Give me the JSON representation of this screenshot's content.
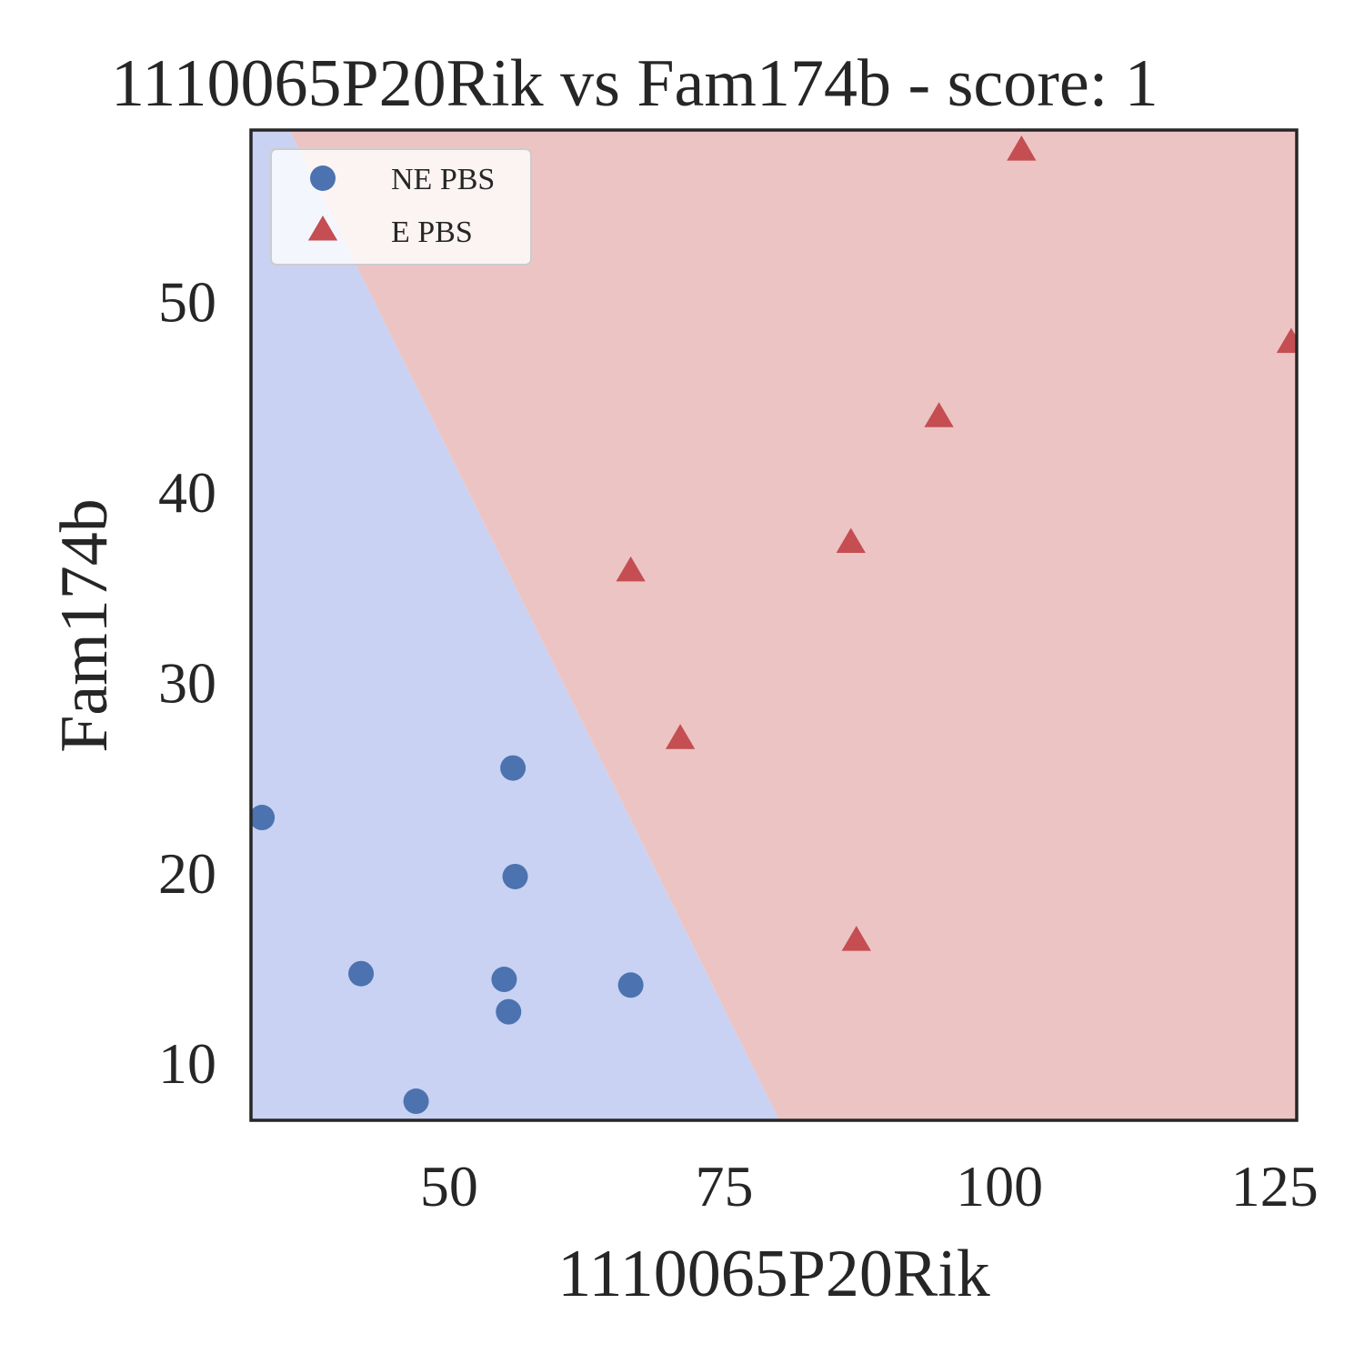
{
  "chart_data": {
    "type": "scatter",
    "title": "1110065P20Rik vs Fam174b - score: 1",
    "xlabel": "1110065P20Rik",
    "ylabel": "Fam174b",
    "xlim": [
      32,
      127
    ],
    "ylim": [
      7,
      59
    ],
    "xticks": [
      50,
      75,
      100,
      125
    ],
    "yticks": [
      10,
      20,
      30,
      40,
      50
    ],
    "grid": false,
    "legend_position": "upper-left",
    "decision_boundary": {
      "point_a": {
        "x": 35.5,
        "y": 59
      },
      "point_b": {
        "x": 80,
        "y": 7
      },
      "left_region_color": "#c9d2f2",
      "right_region_color": "#edc4c4"
    },
    "series": [
      {
        "name": "NE PBS",
        "marker": "circle",
        "color": "#4c72b0",
        "points": [
          {
            "x": 33,
            "y": 22.9
          },
          {
            "x": 42,
            "y": 14.7
          },
          {
            "x": 47,
            "y": 8.0
          },
          {
            "x": 55,
            "y": 14.4
          },
          {
            "x": 55.4,
            "y": 12.7
          },
          {
            "x": 55.8,
            "y": 25.5
          },
          {
            "x": 56,
            "y": 19.8
          },
          {
            "x": 66.5,
            "y": 14.1
          }
        ]
      },
      {
        "name": "E PBS",
        "marker": "triangle",
        "color": "#c44e52",
        "points": [
          {
            "x": 66.5,
            "y": 35.8
          },
          {
            "x": 71,
            "y": 27.0
          },
          {
            "x": 86.5,
            "y": 37.3
          },
          {
            "x": 87,
            "y": 16.4
          },
          {
            "x": 94.5,
            "y": 43.9
          },
          {
            "x": 102,
            "y": 57.9
          },
          {
            "x": 126.5,
            "y": 47.8
          }
        ]
      }
    ]
  }
}
